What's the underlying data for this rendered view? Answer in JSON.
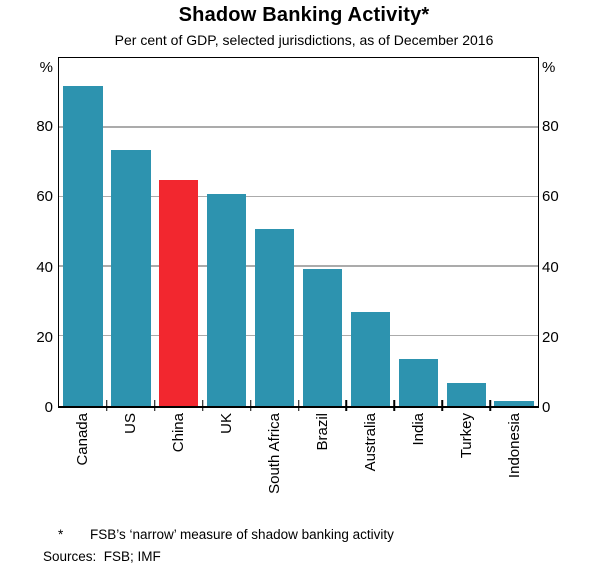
{
  "chart": {
    "title": "Shadow Banking Activity*",
    "subtitle": "Per cent of GDP, selected jurisdictions, as of December 2016"
  },
  "chart_data": {
    "type": "bar",
    "categories": [
      "Canada",
      "US",
      "China",
      "UK",
      "South Africa",
      "Brazil",
      "Australia",
      "India",
      "Turkey",
      "Indonesia"
    ],
    "values": [
      92,
      73.5,
      65,
      61,
      51,
      39.5,
      27,
      13.5,
      6.5,
      1.5
    ],
    "title": "Shadow Banking Activity*",
    "subtitle": "Per cent of GDP, selected jurisdictions, as of December 2016",
    "xlabel": "",
    "ylabel_left": "%",
    "ylabel_right": "%",
    "yticks": [
      0,
      20,
      40,
      60,
      80
    ],
    "ylim": [
      0,
      100
    ],
    "grid": true,
    "legend": false,
    "highlight_category": "China",
    "colors": {
      "bar": "#2D93AF",
      "highlight": "#F2272F",
      "gridline": "#ABABAB",
      "axis": "#000000"
    }
  },
  "footnote": {
    "marker": "*",
    "text": "FSB’s ‘narrow’ measure of shadow banking activity",
    "sources": "Sources:  FSB; IMF"
  }
}
